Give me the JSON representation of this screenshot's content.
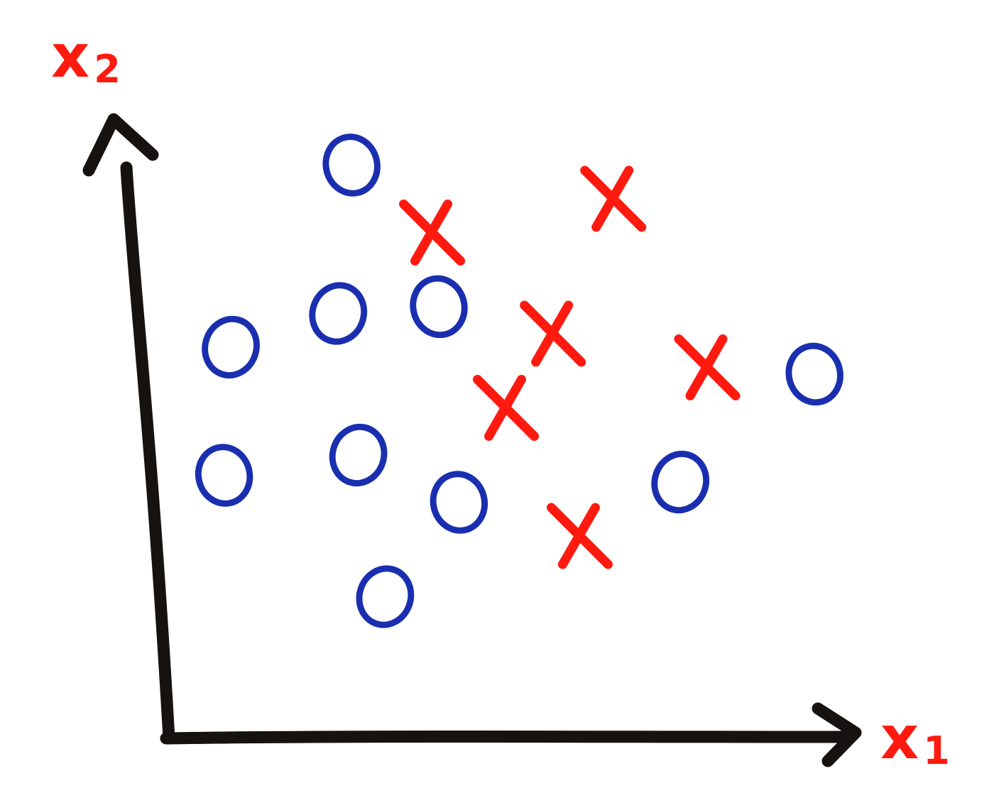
{
  "chart_data": {
    "type": "scatter",
    "title": "",
    "xlabel": "x",
    "xlabel_subscript": "1",
    "ylabel": "x",
    "ylabel_subscript": "2",
    "xlim": [
      0,
      10
    ],
    "ylim": [
      0,
      10
    ],
    "grid": false,
    "legend": "none",
    "series": [
      {
        "marker": "o",
        "color": "#1a2fb0",
        "points": [
          {
            "x": 2.7,
            "y": 8.5
          },
          {
            "x": 2.5,
            "y": 6.3
          },
          {
            "x": 4.0,
            "y": 6.4
          },
          {
            "x": 0.9,
            "y": 5.8
          },
          {
            "x": 0.8,
            "y": 3.9
          },
          {
            "x": 2.8,
            "y": 4.2
          },
          {
            "x": 4.3,
            "y": 3.5
          },
          {
            "x": 7.6,
            "y": 3.8
          },
          {
            "x": 9.6,
            "y": 5.4
          },
          {
            "x": 3.2,
            "y": 2.1
          }
        ]
      },
      {
        "marker": "x",
        "color": "#ff1a10",
        "points": [
          {
            "x": 3.9,
            "y": 7.5
          },
          {
            "x": 6.6,
            "y": 8.0
          },
          {
            "x": 5.7,
            "y": 6.0
          },
          {
            "x": 8.0,
            "y": 5.5
          },
          {
            "x": 5.0,
            "y": 4.9
          },
          {
            "x": 6.1,
            "y": 3.0
          }
        ]
      }
    ]
  }
}
